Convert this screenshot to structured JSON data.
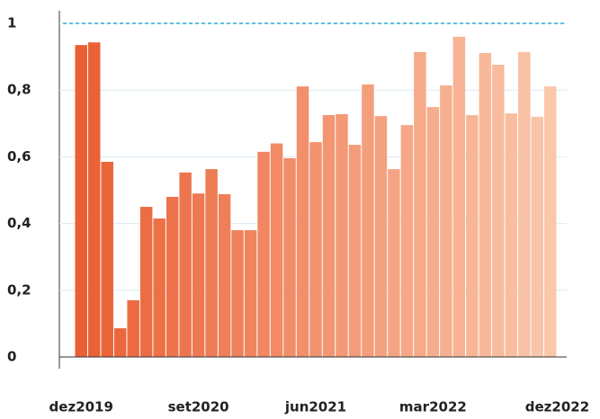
{
  "chart_data": {
    "type": "bar",
    "categories": [
      "dez2019",
      null,
      null,
      null,
      null,
      null,
      null,
      null,
      null,
      "set2020",
      null,
      null,
      null,
      null,
      null,
      null,
      null,
      null,
      "jun2021",
      null,
      null,
      null,
      null,
      null,
      null,
      null,
      null,
      "mar2022",
      null,
      null,
      null,
      null,
      null,
      null,
      null,
      null,
      "dez2022"
    ],
    "values": [
      0.935,
      0.943,
      0.585,
      0.086,
      0.17,
      0.45,
      0.415,
      0.48,
      0.553,
      0.49,
      0.563,
      0.488,
      0.38,
      0.38,
      0.615,
      0.64,
      0.596,
      0.811,
      0.644,
      0.725,
      0.728,
      0.636,
      0.817,
      0.722,
      0.563,
      0.695,
      0.914,
      0.749,
      0.814,
      0.96,
      0.725,
      0.911,
      0.876,
      0.73,
      0.914,
      0.72,
      0.811
    ],
    "color_start": "#ea5f33",
    "color_end": "#fac7ab",
    "ylim": [
      0,
      1
    ],
    "yticks": [
      0,
      {
        "value": 0.2,
        "label": "0,2"
      },
      {
        "value": 0.4,
        "label": "0,4"
      },
      {
        "value": 0.6,
        "label": "0,6"
      },
      {
        "value": 0.8,
        "label": "0,8"
      },
      1
    ],
    "grid": true,
    "reference_line": {
      "value": 1,
      "color": "#2aa8d8"
    }
  }
}
